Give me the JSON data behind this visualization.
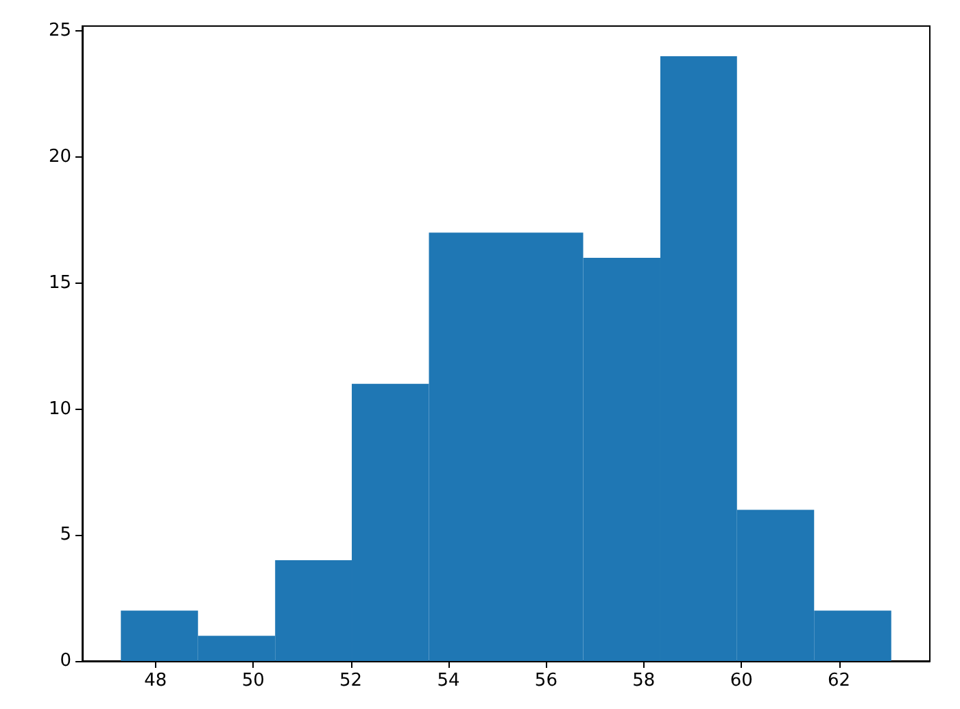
{
  "chart_data": {
    "type": "histogram",
    "bins": [
      47.29,
      48.87,
      50.45,
      52.02,
      53.6,
      55.18,
      56.76,
      58.34,
      59.91,
      61.49,
      63.07
    ],
    "values": [
      2,
      1,
      4,
      11,
      17,
      17,
      16,
      24,
      6,
      2
    ],
    "color": "#1f77b4",
    "xlim": [
      46.5,
      63.86
    ],
    "xticks": [
      48,
      50,
      52,
      54,
      56,
      58,
      60,
      62
    ],
    "ylim": [
      0,
      25.2
    ],
    "yticks": [
      0,
      5,
      10,
      15,
      20,
      25
    ]
  }
}
